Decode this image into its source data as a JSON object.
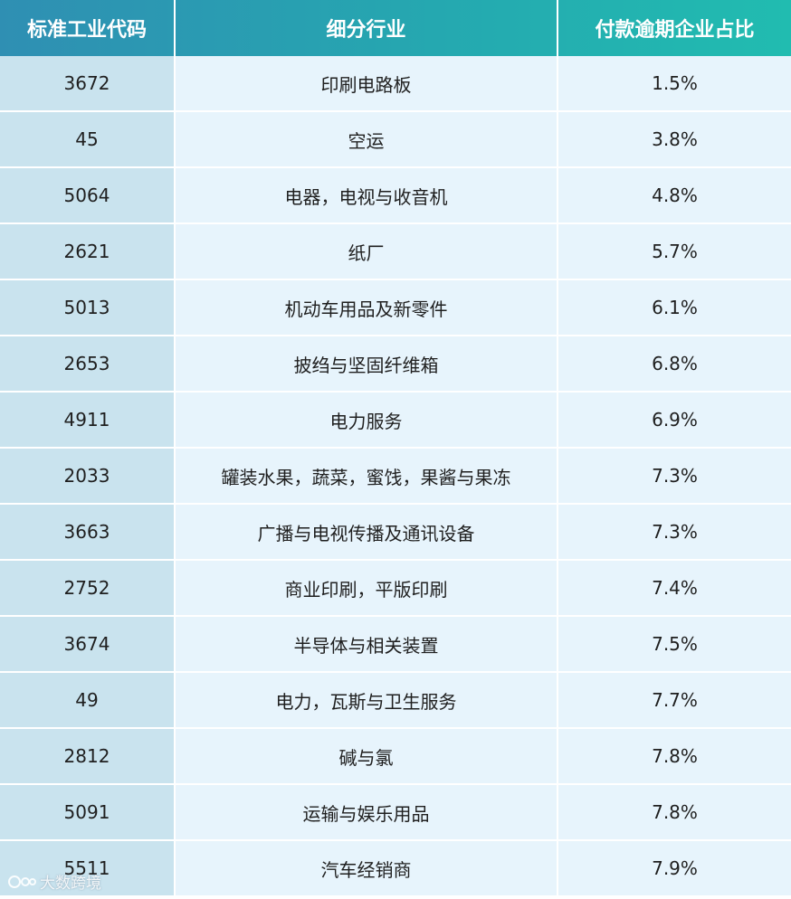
{
  "table": {
    "headers": [
      "标准工业代码",
      "细分行业",
      "付款逾期企业占比"
    ],
    "rows": [
      {
        "code": "3672",
        "industry": "印刷电路板",
        "ratio": "1.5%"
      },
      {
        "code": "45",
        "industry": "空运",
        "ratio": "3.8%"
      },
      {
        "code": "5064",
        "industry": "电器，电视与收音机",
        "ratio": "4.8%"
      },
      {
        "code": "2621",
        "industry": "纸厂",
        "ratio": "5.7%"
      },
      {
        "code": "5013",
        "industry": "机动车用品及新零件",
        "ratio": "6.1%"
      },
      {
        "code": "2653",
        "industry": "披绉与坚固纤维箱",
        "ratio": "6.8%"
      },
      {
        "code": "4911",
        "industry": "电力服务",
        "ratio": "6.9%"
      },
      {
        "code": "2033",
        "industry": "罐装水果，蔬菜，蜜饯，果酱与果冻",
        "ratio": "7.3%"
      },
      {
        "code": "3663",
        "industry": "广播与电视传播及通讯设备",
        "ratio": "7.3%"
      },
      {
        "code": "2752",
        "industry": "商业印刷，平版印刷",
        "ratio": "7.4%"
      },
      {
        "code": "3674",
        "industry": "半导体与相关装置",
        "ratio": "7.5%"
      },
      {
        "code": "49",
        "industry": "电力，瓦斯与卫生服务",
        "ratio": "7.7%"
      },
      {
        "code": "2812",
        "industry": "碱与氯",
        "ratio": "7.8%"
      },
      {
        "code": "5091",
        "industry": "运输与娱乐用品",
        "ratio": "7.8%"
      },
      {
        "code": "5511",
        "industry": "汽车经销商",
        "ratio": "7.9%"
      }
    ]
  },
  "watermark": {
    "text": "大数跨境"
  }
}
